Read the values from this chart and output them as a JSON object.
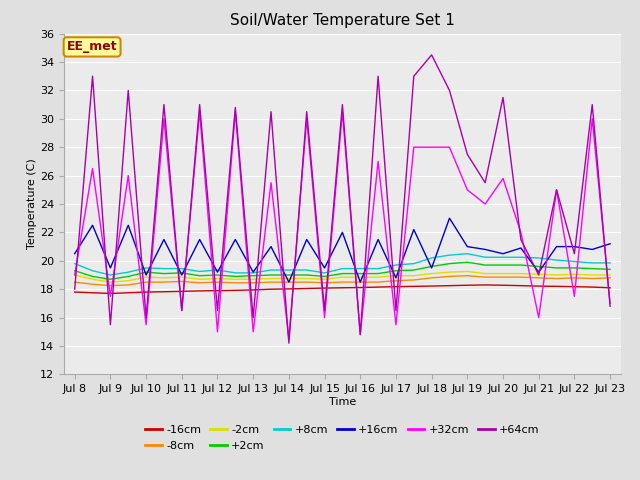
{
  "title": "Soil/Water Temperature Set 1",
  "xlabel": "Time",
  "ylabel": "Temperature (C)",
  "annotation": "EE_met",
  "ylim": [
    12,
    36
  ],
  "yticks": [
    12,
    14,
    16,
    18,
    20,
    22,
    24,
    26,
    28,
    30,
    32,
    34,
    36
  ],
  "xtick_labels": [
    "Jul 8",
    "Jul 9",
    "Jul 10",
    "Jul 11",
    "Jul 12",
    "Jul 13",
    "Jul 14",
    "Jul 15",
    "Jul 16",
    "Jul 17",
    "Jul 18",
    "Jul 19",
    "Jul 20",
    "Jul 21",
    "Jul 22",
    "Jul 23"
  ],
  "series": {
    "-16cm": {
      "color": "#cc0000",
      "values": [
        17.8,
        17.75,
        17.7,
        17.75,
        17.8,
        17.82,
        17.85,
        17.88,
        17.9,
        17.92,
        17.95,
        18.0,
        18.02,
        18.05,
        18.08,
        18.1,
        18.12,
        18.15,
        18.18,
        18.2,
        18.22,
        18.25,
        18.28,
        18.3,
        18.28,
        18.25,
        18.22,
        18.2,
        18.18,
        18.15,
        18.1
      ]
    },
    "-8cm": {
      "color": "#ff8800",
      "values": [
        18.5,
        18.35,
        18.25,
        18.3,
        18.5,
        18.5,
        18.55,
        18.45,
        18.5,
        18.45,
        18.45,
        18.5,
        18.5,
        18.5,
        18.45,
        18.5,
        18.5,
        18.5,
        18.6,
        18.65,
        18.8,
        18.9,
        18.95,
        18.85,
        18.85,
        18.85,
        18.8,
        18.75,
        18.8,
        18.75,
        18.8
      ]
    },
    "-2cm": {
      "color": "#dddd00",
      "values": [
        19.0,
        18.7,
        18.5,
        18.6,
        18.85,
        18.8,
        18.85,
        18.7,
        18.75,
        18.7,
        18.7,
        18.75,
        18.75,
        18.75,
        18.7,
        18.85,
        18.85,
        18.85,
        18.95,
        18.95,
        19.1,
        19.2,
        19.25,
        19.1,
        19.1,
        19.1,
        19.05,
        19.0,
        19.05,
        19.0,
        19.0
      ]
    },
    "+2cm": {
      "color": "#00cc00",
      "values": [
        19.3,
        18.9,
        18.7,
        18.9,
        19.2,
        19.1,
        19.15,
        18.95,
        19.0,
        18.9,
        18.95,
        19.0,
        19.0,
        19.0,
        18.9,
        19.1,
        19.1,
        19.1,
        19.3,
        19.35,
        19.6,
        19.8,
        19.9,
        19.7,
        19.7,
        19.7,
        19.6,
        19.5,
        19.5,
        19.45,
        19.4
      ]
    },
    "+8cm": {
      "color": "#00cccc",
      "values": [
        19.8,
        19.3,
        19.0,
        19.2,
        19.5,
        19.45,
        19.45,
        19.25,
        19.35,
        19.15,
        19.15,
        19.35,
        19.35,
        19.35,
        19.15,
        19.45,
        19.45,
        19.45,
        19.7,
        19.8,
        20.2,
        20.4,
        20.5,
        20.25,
        20.25,
        20.25,
        20.2,
        20.05,
        19.95,
        19.85,
        19.85
      ]
    },
    "+16cm": {
      "color": "#0000cc",
      "values": [
        20.5,
        22.5,
        19.5,
        22.5,
        19.0,
        21.5,
        19.0,
        21.5,
        19.2,
        21.5,
        19.2,
        21.0,
        18.5,
        21.5,
        19.5,
        22.0,
        18.5,
        21.5,
        18.8,
        22.2,
        19.5,
        23.0,
        21.0,
        20.8,
        20.5,
        20.9,
        19.2,
        21.0,
        21.0,
        20.8,
        21.2
      ]
    },
    "+32cm": {
      "color": "#ff00ff",
      "values": [
        19.0,
        26.5,
        17.5,
        26.0,
        15.5,
        30.0,
        16.5,
        30.5,
        15.0,
        30.5,
        15.0,
        25.5,
        14.5,
        30.0,
        16.0,
        30.5,
        14.8,
        27.0,
        15.5,
        28.0,
        28.0,
        28.0,
        25.0,
        24.0,
        25.8,
        22.0,
        16.0,
        25.0,
        17.5,
        30.0,
        17.0
      ]
    },
    "+64cm": {
      "color": "#aa00aa",
      "values": [
        18.0,
        33.0,
        15.5,
        32.0,
        16.0,
        31.0,
        16.5,
        31.0,
        16.5,
        30.8,
        16.0,
        30.5,
        14.2,
        30.5,
        16.5,
        31.0,
        14.8,
        33.0,
        16.5,
        33.0,
        34.5,
        32.0,
        27.5,
        25.5,
        31.5,
        21.5,
        19.0,
        25.0,
        20.5,
        31.0,
        16.8
      ]
    }
  },
  "bg_color": "#e0e0e0",
  "plot_bg": "#ebebeb",
  "grid_color": "#ffffff",
  "title_fontsize": 11,
  "label_fontsize": 8,
  "tick_fontsize": 8,
  "legend_fontsize": 8,
  "annotation_bg": "#ffff99",
  "annotation_border": "#cc8800",
  "annotation_text_color": "#990000"
}
